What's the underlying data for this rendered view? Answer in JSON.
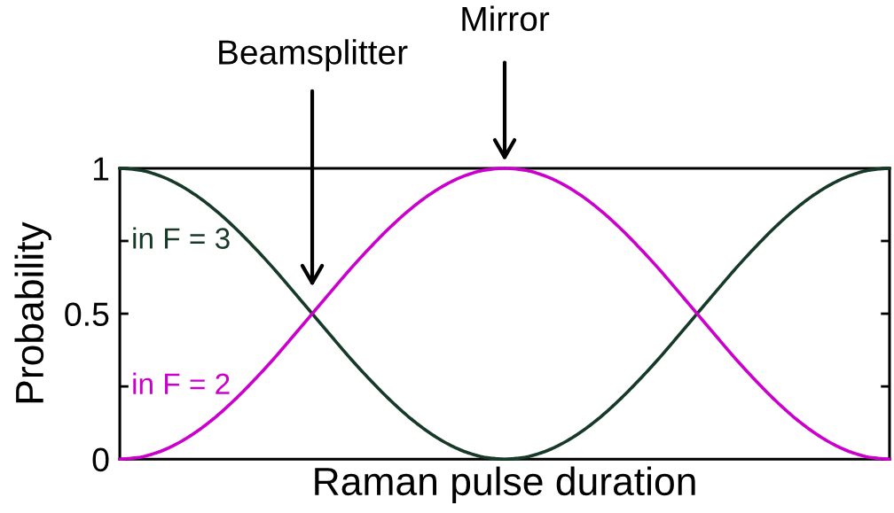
{
  "chart_data": {
    "type": "line",
    "xlabel": "Raman pulse duration",
    "ylabel": "Probability",
    "categories": [
      null,
      null,
      null,
      null,
      null,
      null,
      null,
      null,
      null,
      null,
      null,
      null,
      null,
      null,
      null,
      null,
      null,
      null,
      null,
      null,
      null,
      null,
      null,
      null,
      null,
      null,
      null,
      null,
      null,
      null,
      null,
      null,
      null,
      null,
      null,
      null,
      null,
      null,
      null,
      null,
      null
    ],
    "series": [
      {
        "name": "in F = 3",
        "color": "#173a28",
        "values": [
          1,
          0.994,
          0.976,
          0.946,
          0.905,
          0.854,
          0.794,
          0.727,
          0.655,
          0.578,
          0.5,
          0.422,
          0.345,
          0.273,
          0.206,
          0.146,
          0.095,
          0.054,
          0.024,
          0.006,
          0,
          0.006,
          0.024,
          0.054,
          0.095,
          0.146,
          0.206,
          0.273,
          0.345,
          0.422,
          0.5,
          0.578,
          0.655,
          0.727,
          0.794,
          0.854,
          0.905,
          0.946,
          0.976,
          0.994,
          1
        ]
      },
      {
        "name": "in F = 2",
        "color": "#cc00cc",
        "values": [
          0,
          0.006,
          0.024,
          0.054,
          0.095,
          0.146,
          0.206,
          0.273,
          0.345,
          0.422,
          0.5,
          0.578,
          0.655,
          0.727,
          0.794,
          0.854,
          0.905,
          0.946,
          0.976,
          0.994,
          1,
          0.994,
          0.976,
          0.946,
          0.905,
          0.854,
          0.794,
          0.727,
          0.655,
          0.578,
          0.5,
          0.422,
          0.345,
          0.273,
          0.206,
          0.146,
          0.095,
          0.054,
          0.024,
          0.006,
          0
        ]
      }
    ],
    "ylim": [
      0,
      1
    ],
    "yticks": [
      0,
      {
        "value": 0.25,
        "label": null
      },
      0.5,
      {
        "value": 0.75,
        "label": null
      },
      1
    ],
    "tick_labels": "y",
    "line_style": "solid",
    "annotations": [
      "Beamsplitter",
      "Mirror"
    ]
  }
}
